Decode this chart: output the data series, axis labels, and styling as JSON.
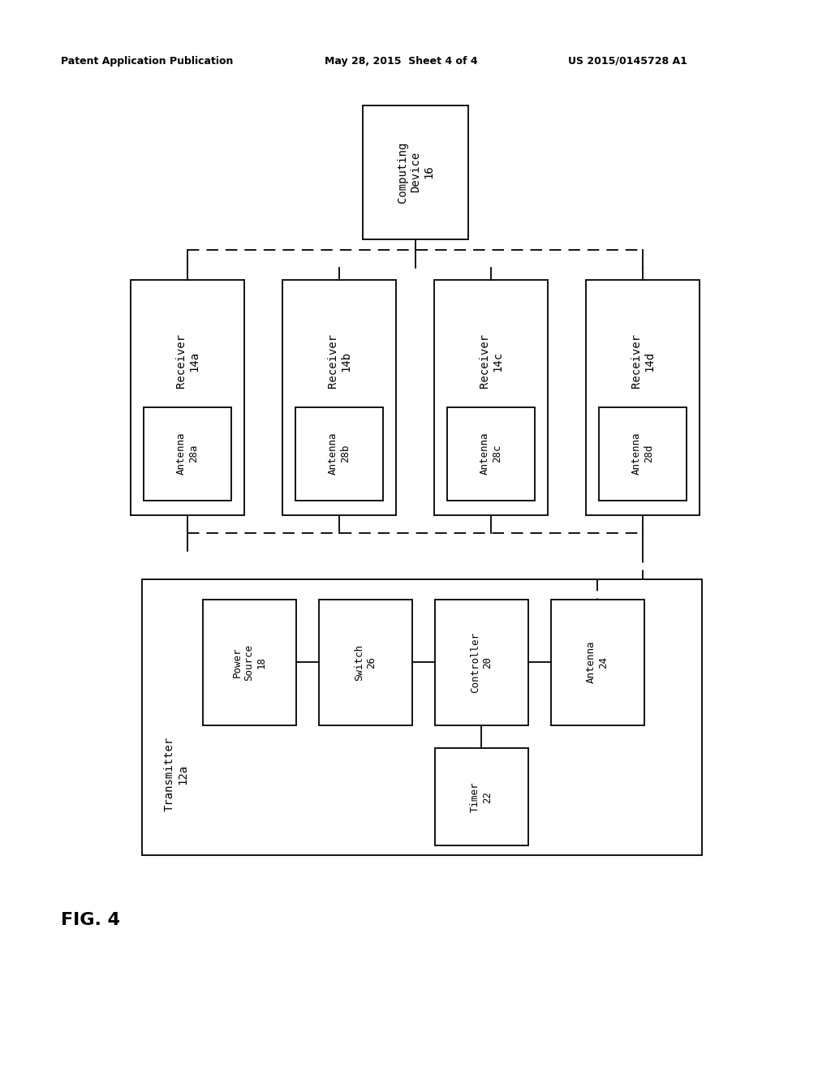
{
  "header_left": "Patent Application Publication",
  "header_mid": "May 28, 2015  Sheet 4 of 4",
  "header_right": "US 2015/0145728 A1",
  "fig_label": "FIG. 4",
  "computing_device_label": "Computing\nDevice\n16",
  "receivers": [
    {
      "label": "Receiver\n14a",
      "antenna": "Antenna\n28a"
    },
    {
      "label": "Receiver\n14b",
      "antenna": "Antenna\n28b"
    },
    {
      "label": "Receiver\n14c",
      "antenna": "Antenna\n28c"
    },
    {
      "label": "Receiver\n14d",
      "antenna": "Antenna\n28d"
    }
  ],
  "transmitter_label": "Transmitter\n12a",
  "comp_labels": [
    "Power\nSource\n18",
    "Switch\n26",
    "Controller\n20",
    "Antenna\n24"
  ],
  "timer_label": "Timer\n22",
  "bg_color": "#ffffff",
  "box_color": "#000000",
  "text_color": "#000000",
  "line_color": "#000000"
}
